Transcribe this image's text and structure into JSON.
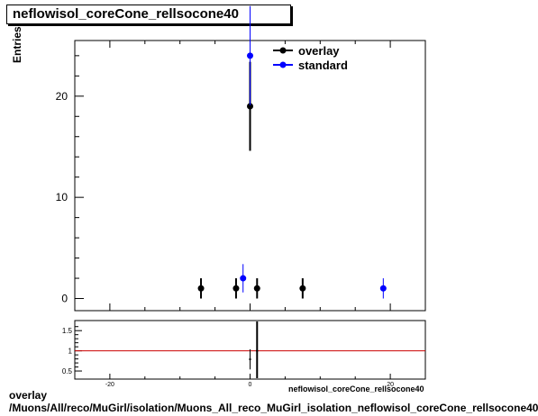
{
  "header": {
    "title": "neflowisol_coreCone_rellsocone40"
  },
  "footer": {
    "line1": "overlay",
    "line2": "/Muons/All/reco/MuGirl/isolation/Muons_All_reco_MuGirl_isolation_neflowisol_coreCone_rellsocone40"
  },
  "chart_data": [
    {
      "type": "scatter",
      "title": "neflowisol_coreCone_rellsocone40",
      "ylabel": "Entries",
      "xlabel": "neflowisol_coreCone_rellsocone40",
      "xlim": [
        -25,
        25
      ],
      "ylim": [
        -1.2,
        25.5
      ],
      "x_ticks": [
        -20,
        0,
        20
      ],
      "y_ticks": [
        0,
        10,
        20
      ],
      "legend": {
        "placement": "top-right"
      },
      "series": [
        {
          "name": "overlay",
          "color": "#000000",
          "points": [
            {
              "x": -7,
              "y": 1,
              "err": 1
            },
            {
              "x": -2,
              "y": 1,
              "err": 1
            },
            {
              "x": 0,
              "y": 19,
              "err": 4.4
            },
            {
              "x": 1,
              "y": 1,
              "err": 1
            },
            {
              "x": 7.5,
              "y": 1,
              "err": 1
            }
          ]
        },
        {
          "name": "standard",
          "color": "#0000ff",
          "points": [
            {
              "x": -1,
              "y": 2,
              "err": 1.4
            },
            {
              "x": 0,
              "y": 24,
              "err": 4.9
            },
            {
              "x": 19,
              "y": 1,
              "err": 1
            }
          ]
        }
      ]
    },
    {
      "type": "line",
      "title": "",
      "ylabel": "",
      "xlim": [
        -25,
        25
      ],
      "ylim": [
        0.3,
        1.75
      ],
      "y_ticks": [
        0.5,
        1,
        1.5
      ],
      "y_tick_labels": [
        "0.5",
        "1",
        "1.5"
      ],
      "reference_line": {
        "y": 1,
        "color": "#cc0000"
      },
      "ratio_points": [
        {
          "x": 0,
          "y": 0.79,
          "err_low": 0.25,
          "err_high": 0.25
        },
        {
          "x": 1,
          "y": 1.0,
          "err_low": 1.0,
          "err_high": 1.0
        }
      ]
    }
  ]
}
